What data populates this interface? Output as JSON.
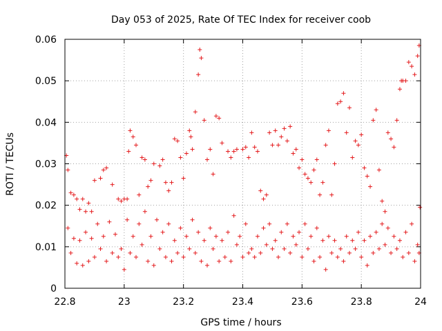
{
  "chart_data": {
    "type": "scatter",
    "title": "Day 053 of 2025, Rate Of TEC Index for receiver coob",
    "xlabel": "GPS time / hours",
    "ylabel": "ROTI / TECUs",
    "xlim": [
      22.8,
      24
    ],
    "ylim": [
      0,
      0.06
    ],
    "xticks": [
      22.8,
      23,
      23.2,
      23.4,
      23.6,
      23.8,
      24
    ],
    "xtick_labels": [
      "22.8",
      "23",
      "23.2",
      "23.4",
      "23.6",
      "23.8",
      "24"
    ],
    "yticks": [
      0,
      0.01,
      0.02,
      0.03,
      0.04,
      0.05,
      0.06
    ],
    "ytick_labels": [
      "0",
      "0.01",
      "0.02",
      "0.03",
      "0.04",
      "0.05",
      "0.06"
    ],
    "grid": true,
    "marker": "+",
    "color": "#e41a1c",
    "series": [
      {
        "name": "ROTI",
        "points": [
          [
            22.805,
            0.032
          ],
          [
            22.81,
            0.0285
          ],
          [
            22.82,
            0.023
          ],
          [
            22.83,
            0.0225
          ],
          [
            22.84,
            0.0215
          ],
          [
            22.85,
            0.019
          ],
          [
            22.86,
            0.0215
          ],
          [
            22.87,
            0.0185
          ],
          [
            22.88,
            0.0205
          ],
          [
            22.89,
            0.0185
          ],
          [
            22.9,
            0.026
          ],
          [
            22.92,
            0.0265
          ],
          [
            22.93,
            0.0285
          ],
          [
            22.94,
            0.029
          ],
          [
            22.96,
            0.025
          ],
          [
            22.98,
            0.0215
          ],
          [
            22.99,
            0.021
          ],
          [
            23.0,
            0.0215
          ],
          [
            23.01,
            0.0215
          ],
          [
            23.015,
            0.033
          ],
          [
            23.02,
            0.038
          ],
          [
            23.03,
            0.0365
          ],
          [
            23.04,
            0.0345
          ],
          [
            23.05,
            0.0225
          ],
          [
            23.06,
            0.0315
          ],
          [
            23.07,
            0.031
          ],
          [
            23.08,
            0.0245
          ],
          [
            23.09,
            0.026
          ],
          [
            23.1,
            0.03
          ],
          [
            23.12,
            0.0295
          ],
          [
            23.13,
            0.031
          ],
          [
            23.14,
            0.0255
          ],
          [
            23.15,
            0.0235
          ],
          [
            23.16,
            0.0255
          ],
          [
            23.17,
            0.036
          ],
          [
            23.18,
            0.0355
          ],
          [
            23.19,
            0.0315
          ],
          [
            23.2,
            0.0265
          ],
          [
            23.21,
            0.0325
          ],
          [
            23.22,
            0.038
          ],
          [
            23.225,
            0.0365
          ],
          [
            23.23,
            0.0335
          ],
          [
            23.24,
            0.0425
          ],
          [
            23.25,
            0.0515
          ],
          [
            23.255,
            0.0575
          ],
          [
            23.26,
            0.0555
          ],
          [
            23.27,
            0.0405
          ],
          [
            23.28,
            0.031
          ],
          [
            23.29,
            0.0335
          ],
          [
            23.3,
            0.0275
          ],
          [
            23.31,
            0.0415
          ],
          [
            23.32,
            0.041
          ],
          [
            23.33,
            0.035
          ],
          [
            23.35,
            0.033
          ],
          [
            23.36,
            0.0315
          ],
          [
            23.37,
            0.033
          ],
          [
            23.38,
            0.0335
          ],
          [
            23.4,
            0.0335
          ],
          [
            23.41,
            0.034
          ],
          [
            23.42,
            0.0315
          ],
          [
            23.43,
            0.0375
          ],
          [
            23.44,
            0.034
          ],
          [
            23.45,
            0.033
          ],
          [
            23.46,
            0.0235
          ],
          [
            23.47,
            0.0215
          ],
          [
            23.48,
            0.0225
          ],
          [
            23.49,
            0.0375
          ],
          [
            23.5,
            0.0345
          ],
          [
            23.51,
            0.038
          ],
          [
            23.52,
            0.0345
          ],
          [
            23.53,
            0.0365
          ],
          [
            23.54,
            0.0385
          ],
          [
            23.55,
            0.0355
          ],
          [
            23.56,
            0.039
          ],
          [
            23.57,
            0.0325
          ],
          [
            23.58,
            0.0335
          ],
          [
            23.59,
            0.029
          ],
          [
            23.6,
            0.031
          ],
          [
            23.61,
            0.0275
          ],
          [
            23.62,
            0.0265
          ],
          [
            23.63,
            0.0255
          ],
          [
            23.64,
            0.0285
          ],
          [
            23.65,
            0.031
          ],
          [
            23.66,
            0.0225
          ],
          [
            23.67,
            0.0255
          ],
          [
            23.68,
            0.0345
          ],
          [
            23.69,
            0.038
          ],
          [
            23.7,
            0.0225
          ],
          [
            23.71,
            0.03
          ],
          [
            23.72,
            0.0445
          ],
          [
            23.73,
            0.045
          ],
          [
            23.74,
            0.047
          ],
          [
            23.75,
            0.0375
          ],
          [
            23.76,
            0.0435
          ],
          [
            23.77,
            0.0315
          ],
          [
            23.78,
            0.0355
          ],
          [
            23.79,
            0.0345
          ],
          [
            23.8,
            0.037
          ],
          [
            23.81,
            0.029
          ],
          [
            23.82,
            0.027
          ],
          [
            23.83,
            0.0245
          ],
          [
            23.84,
            0.0405
          ],
          [
            23.85,
            0.043
          ],
          [
            23.86,
            0.0285
          ],
          [
            23.87,
            0.021
          ],
          [
            23.88,
            0.0185
          ],
          [
            23.89,
            0.0375
          ],
          [
            23.9,
            0.036
          ],
          [
            23.91,
            0.034
          ],
          [
            23.92,
            0.0405
          ],
          [
            23.93,
            0.048
          ],
          [
            23.935,
            0.05
          ],
          [
            23.94,
            0.05
          ],
          [
            23.95,
            0.05
          ],
          [
            23.96,
            0.0545
          ],
          [
            23.97,
            0.0535
          ],
          [
            23.98,
            0.0515
          ],
          [
            23.99,
            0.056
          ],
          [
            23.995,
            0.0585
          ],
          [
            23.998,
            0.0195
          ],
          [
            22.81,
            0.0145
          ],
          [
            22.82,
            0.0085
          ],
          [
            22.83,
            0.012
          ],
          [
            22.84,
            0.006
          ],
          [
            22.85,
            0.0115
          ],
          [
            22.86,
            0.0055
          ],
          [
            22.87,
            0.0135
          ],
          [
            22.88,
            0.0065
          ],
          [
            22.89,
            0.012
          ],
          [
            22.9,
            0.0075
          ],
          [
            22.91,
            0.0155
          ],
          [
            22.92,
            0.0095
          ],
          [
            22.93,
            0.0125
          ],
          [
            22.94,
            0.0065
          ],
          [
            22.95,
            0.016
          ],
          [
            22.96,
            0.0085
          ],
          [
            22.97,
            0.013
          ],
          [
            22.98,
            0.0075
          ],
          [
            22.99,
            0.0095
          ],
          [
            23.0,
            0.0045
          ],
          [
            23.01,
            0.0165
          ],
          [
            23.02,
            0.0085
          ],
          [
            23.03,
            0.0125
          ],
          [
            23.04,
            0.0075
          ],
          [
            23.05,
            0.0155
          ],
          [
            23.06,
            0.0105
          ],
          [
            23.07,
            0.0185
          ],
          [
            23.08,
            0.0065
          ],
          [
            23.09,
            0.0125
          ],
          [
            23.1,
            0.0055
          ],
          [
            23.11,
            0.0165
          ],
          [
            23.12,
            0.0095
          ],
          [
            23.13,
            0.0135
          ],
          [
            23.14,
            0.0075
          ],
          [
            23.15,
            0.0155
          ],
          [
            23.16,
            0.0065
          ],
          [
            23.17,
            0.0115
          ],
          [
            23.18,
            0.0085
          ],
          [
            23.19,
            0.0145
          ],
          [
            23.2,
            0.0075
          ],
          [
            23.21,
            0.0125
          ],
          [
            23.22,
            0.0095
          ],
          [
            23.23,
            0.0165
          ],
          [
            23.24,
            0.0085
          ],
          [
            23.25,
            0.0135
          ],
          [
            23.26,
            0.0065
          ],
          [
            23.27,
            0.0115
          ],
          [
            23.28,
            0.0055
          ],
          [
            23.29,
            0.0145
          ],
          [
            23.3,
            0.0095
          ],
          [
            23.31,
            0.0125
          ],
          [
            23.32,
            0.0065
          ],
          [
            23.33,
            0.0115
          ],
          [
            23.34,
            0.0075
          ],
          [
            23.35,
            0.0135
          ],
          [
            23.36,
            0.0065
          ],
          [
            23.37,
            0.0175
          ],
          [
            23.38,
            0.0105
          ],
          [
            23.39,
            0.0125
          ],
          [
            23.4,
            0.0075
          ],
          [
            23.41,
            0.0155
          ],
          [
            23.42,
            0.0085
          ],
          [
            23.43,
            0.0095
          ],
          [
            23.44,
            0.0075
          ],
          [
            23.45,
            0.0125
          ],
          [
            23.46,
            0.0085
          ],
          [
            23.47,
            0.0145
          ],
          [
            23.48,
            0.0105
          ],
          [
            23.49,
            0.0155
          ],
          [
            23.5,
            0.0095
          ],
          [
            23.51,
            0.0115
          ],
          [
            23.52,
            0.0075
          ],
          [
            23.53,
            0.0135
          ],
          [
            23.54,
            0.0095
          ],
          [
            23.55,
            0.0155
          ],
          [
            23.56,
            0.0085
          ],
          [
            23.57,
            0.0125
          ],
          [
            23.58,
            0.0105
          ],
          [
            23.59,
            0.0135
          ],
          [
            23.6,
            0.0075
          ],
          [
            23.61,
            0.0155
          ],
          [
            23.62,
            0.0095
          ],
          [
            23.63,
            0.0125
          ],
          [
            23.64,
            0.0065
          ],
          [
            23.65,
            0.0145
          ],
          [
            23.66,
            0.0075
          ],
          [
            23.67,
            0.0115
          ],
          [
            23.68,
            0.0045
          ],
          [
            23.69,
            0.0125
          ],
          [
            23.7,
            0.0085
          ],
          [
            23.71,
            0.0115
          ],
          [
            23.72,
            0.0075
          ],
          [
            23.73,
            0.0095
          ],
          [
            23.74,
            0.0065
          ],
          [
            23.75,
            0.0125
          ],
          [
            23.76,
            0.0085
          ],
          [
            23.77,
            0.0115
          ],
          [
            23.78,
            0.0095
          ],
          [
            23.79,
            0.0135
          ],
          [
            23.8,
            0.0075
          ],
          [
            23.81,
            0.0115
          ],
          [
            23.82,
            0.0055
          ],
          [
            23.83,
            0.0125
          ],
          [
            23.84,
            0.0085
          ],
          [
            23.85,
            0.0135
          ],
          [
            23.86,
            0.0095
          ],
          [
            23.87,
            0.0155
          ],
          [
            23.88,
            0.0105
          ],
          [
            23.89,
            0.0145
          ],
          [
            23.9,
            0.0085
          ],
          [
            23.91,
            0.0125
          ],
          [
            23.92,
            0.0095
          ],
          [
            23.93,
            0.0115
          ],
          [
            23.94,
            0.0075
          ],
          [
            23.95,
            0.0135
          ],
          [
            23.96,
            0.0085
          ],
          [
            23.97,
            0.0155
          ],
          [
            23.98,
            0.0065
          ],
          [
            23.99,
            0.0105
          ],
          [
            23.995,
            0.0085
          ]
        ]
      }
    ]
  }
}
